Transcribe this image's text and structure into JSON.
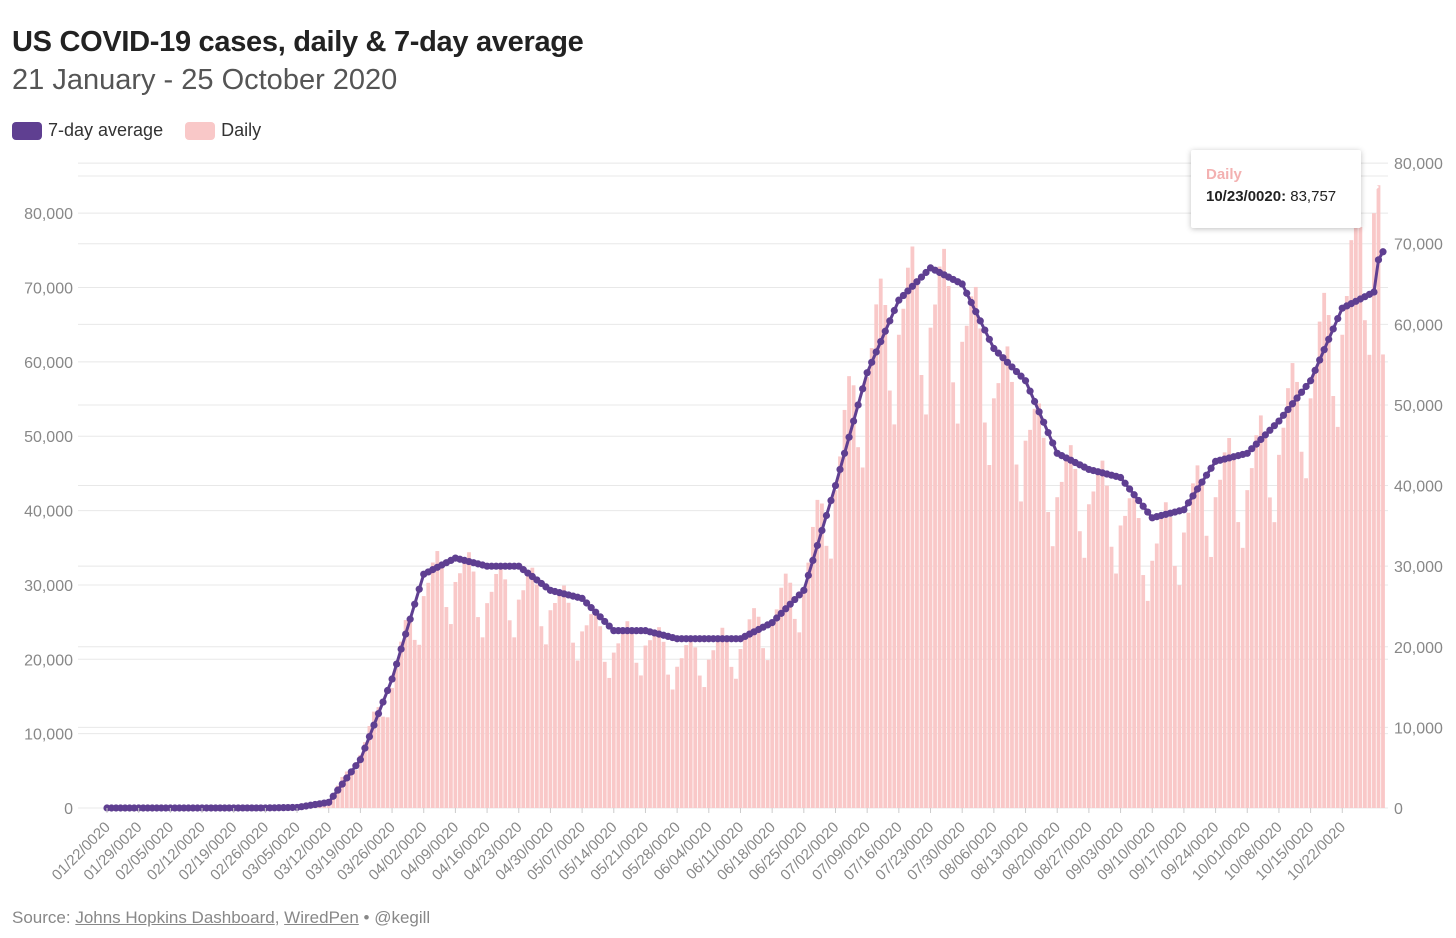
{
  "header": {
    "title": "US COVID-19 cases, daily & 7-day average",
    "subtitle": "21 January - 25 October 2020"
  },
  "legend": {
    "items": [
      {
        "label": "7-day average",
        "color": "#5f3f91"
      },
      {
        "label": "Daily",
        "color": "#f9c8c8"
      }
    ]
  },
  "tooltip": {
    "series": "Daily",
    "date": "10/23/0020:",
    "value": "83,757"
  },
  "footer": {
    "prefix": "Source: ",
    "link1": "Johns Hopkins Dashboard",
    "sep": ", ",
    "link2": "WiredPen",
    "suffix": " • @kegill"
  },
  "colors": {
    "average_line": "#5f3f91",
    "daily_bar": "#f9c8c8",
    "grid": "#e8e8e8",
    "tick_text": "#888888",
    "tooltip_label": "#f3b1b1"
  },
  "chart_data": {
    "type": "bar",
    "combo": "bar-with-line",
    "start_date": "01/22/0020",
    "x_tick_labels": [
      "01/22/0020",
      "01/29/0020",
      "02/05/0020",
      "02/12/0020",
      "02/19/0020",
      "02/26/0020",
      "03/05/0020",
      "03/12/0020",
      "03/19/0020",
      "03/26/0020",
      "04/02/0020",
      "04/09/0020",
      "04/16/0020",
      "04/23/0020",
      "04/30/0020",
      "05/07/0020",
      "05/14/0020",
      "05/21/0020",
      "05/28/0020",
      "06/04/0020",
      "06/11/0020",
      "06/18/0020",
      "06/25/0020",
      "07/02/0020",
      "07/09/0020",
      "07/16/0020",
      "07/23/0020",
      "07/30/0020",
      "08/06/0020",
      "08/13/0020",
      "08/20/0020",
      "08/27/0020",
      "09/03/0020",
      "09/10/0020",
      "09/17/0020",
      "09/24/0020",
      "10/01/0020",
      "10/08/0020",
      "10/15/0020",
      "10/22/0020"
    ],
    "y_left": {
      "ticks": [
        0,
        10000,
        20000,
        30000,
        40000,
        50000,
        60000,
        70000,
        80000
      ],
      "tick_labels": [
        "0",
        "10,000",
        "20,000",
        "30,000",
        "40,000",
        "50,000",
        "60,000",
        "70,000",
        "80,000"
      ],
      "ylim": [
        0,
        85000
      ]
    },
    "y_right": {
      "ticks": [
        0,
        10000,
        20000,
        30000,
        40000,
        50000,
        60000,
        70000,
        80000
      ],
      "tick_labels": [
        "0",
        "10,000",
        "20,000",
        "30,000",
        "40,000",
        "50,000",
        "60,000",
        "70,000",
        "80,000"
      ],
      "ylim": [
        0,
        78400
      ]
    },
    "grid": true,
    "legend_position": "top-left",
    "series": [
      {
        "name": "7-day average",
        "axis": "right",
        "render": "line-with-markers",
        "weekly_values": [
          1,
          1,
          1,
          2,
          4,
          8,
          70,
          700,
          6000,
          16000,
          29000,
          31000,
          30000,
          30000,
          27000,
          26000,
          22000,
          22000,
          21000,
          21000,
          21000,
          23000,
          27000,
          40000,
          54000,
          63000,
          67000,
          65000,
          57000,
          53000,
          44000,
          42000,
          41000,
          36000,
          37000,
          43000,
          44000,
          48000,
          53000,
          62000
        ],
        "final_values": [
          64000,
          68000,
          69000
        ]
      },
      {
        "name": "Daily",
        "axis": "left",
        "render": "bar",
        "weekly_values": [
          1,
          1,
          1,
          2,
          5,
          12,
          90,
          900,
          7500,
          17000,
          30000,
          32000,
          29000,
          29500,
          28000,
          25000,
          22000,
          23000,
          20000,
          21000,
          22500,
          26000,
          31000,
          45000,
          61000,
          67000,
          68000,
          66000,
          58000,
          52000,
          44000,
          43000,
          40000,
          35000,
          39000,
          44000,
          45000,
          50000,
          58000,
          67000
        ],
        "final_values": [
          80000,
          83757,
          61000
        ]
      }
    ]
  }
}
